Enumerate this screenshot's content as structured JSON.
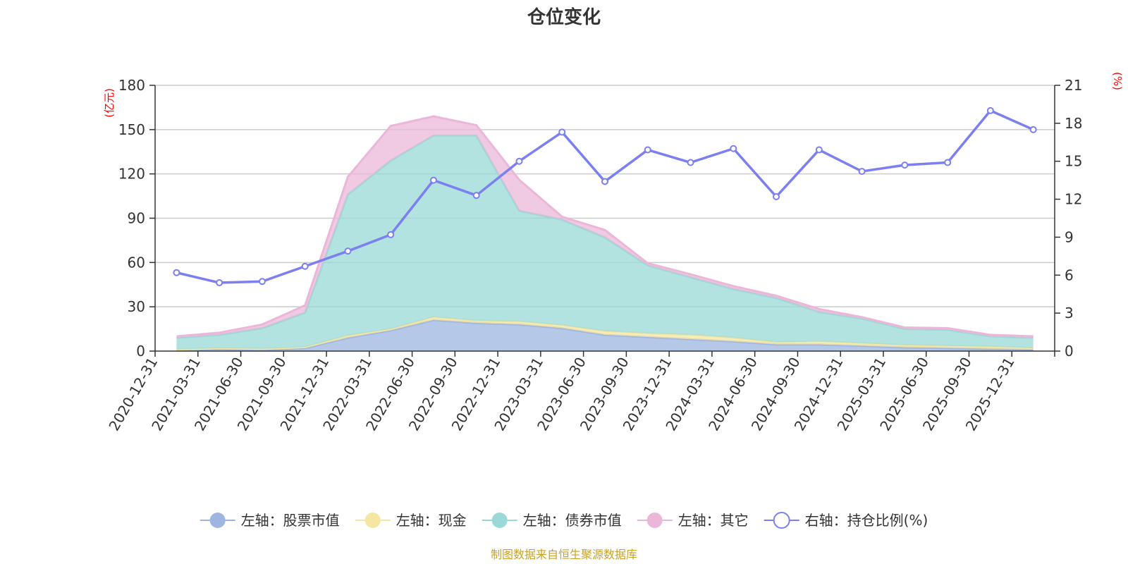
{
  "chart_data": {
    "type": "area",
    "title": "仓位变化",
    "left_unit": "(亿元)",
    "right_unit": "(%)",
    "categories": [
      "2020-12-31",
      "2021-03-31",
      "2021-06-30",
      "2021-09-30",
      "2021-12-31",
      "2022-03-31",
      "2022-06-30",
      "2022-09-30",
      "2022-12-31",
      "2023-03-31",
      "2023-06-30",
      "2023-09-30",
      "2023-12-31",
      "2024-03-31",
      "2024-06-30",
      "2024-09-30",
      "2024-12-31",
      "2025-03-31",
      "2025-06-30",
      "2025-09-30",
      "2025-12-31"
    ],
    "ylim_left": [
      0,
      180
    ],
    "yticks_left": [
      0,
      30,
      60,
      90,
      120,
      150,
      180
    ],
    "ylim_right": [
      0,
      21
    ],
    "yticks_right": [
      0,
      3,
      6,
      9,
      12,
      15,
      18,
      21
    ],
    "stacked_series": [
      {
        "name": "左轴：股票市值",
        "color": "#9db5e0",
        "values": [
          0.5,
          1.5,
          1.0,
          2.0,
          9.0,
          14.0,
          21.0,
          19.0,
          18.0,
          15.5,
          11.0,
          9.5,
          8.0,
          6.5,
          4.5,
          4.5,
          3.5,
          2.5,
          2.0,
          1.5,
          1.0
        ]
      },
      {
        "name": "左轴：现金",
        "color": "#f5e6a3",
        "values": [
          0.5,
          0.5,
          0.5,
          0.7,
          1.5,
          1.0,
          2.0,
          1.5,
          2.0,
          2.0,
          2.5,
          2.5,
          3.0,
          2.5,
          1.5,
          2.0,
          1.8,
          1.5,
          1.5,
          1.5,
          1.0
        ]
      },
      {
        "name": "左轴：债券市值",
        "color": "#9ad9d7",
        "values": [
          8.0,
          9.0,
          14.0,
          23.3,
          95.5,
          114.0,
          123.0,
          125.5,
          75.0,
          71.5,
          63.5,
          46.0,
          39.0,
          33.0,
          30.0,
          20.0,
          16.7,
          11.0,
          11.0,
          7.0,
          7.0
        ]
      },
      {
        "name": "左轴：其它",
        "color": "#ebb7d9",
        "values": [
          1.0,
          1.5,
          2.5,
          5.0,
          12.0,
          23.5,
          13.0,
          7.0,
          21.0,
          2.0,
          5.0,
          1.5,
          2.0,
          2.0,
          1.5,
          2.0,
          1.0,
          1.0,
          1.0,
          1.0,
          1.0
        ]
      }
    ],
    "line_series": {
      "name": "右轴：持仓比例(%)",
      "color": "#7b7ff0",
      "values": [
        6.2,
        5.4,
        5.5,
        6.7,
        7.9,
        9.2,
        13.5,
        12.3,
        15.0,
        17.3,
        13.4,
        15.9,
        14.9,
        16.0,
        12.2,
        15.9,
        14.2,
        14.7,
        14.9,
        19.0,
        17.5
      ]
    }
  },
  "source_text": "制图数据来自恒生聚源数据库"
}
